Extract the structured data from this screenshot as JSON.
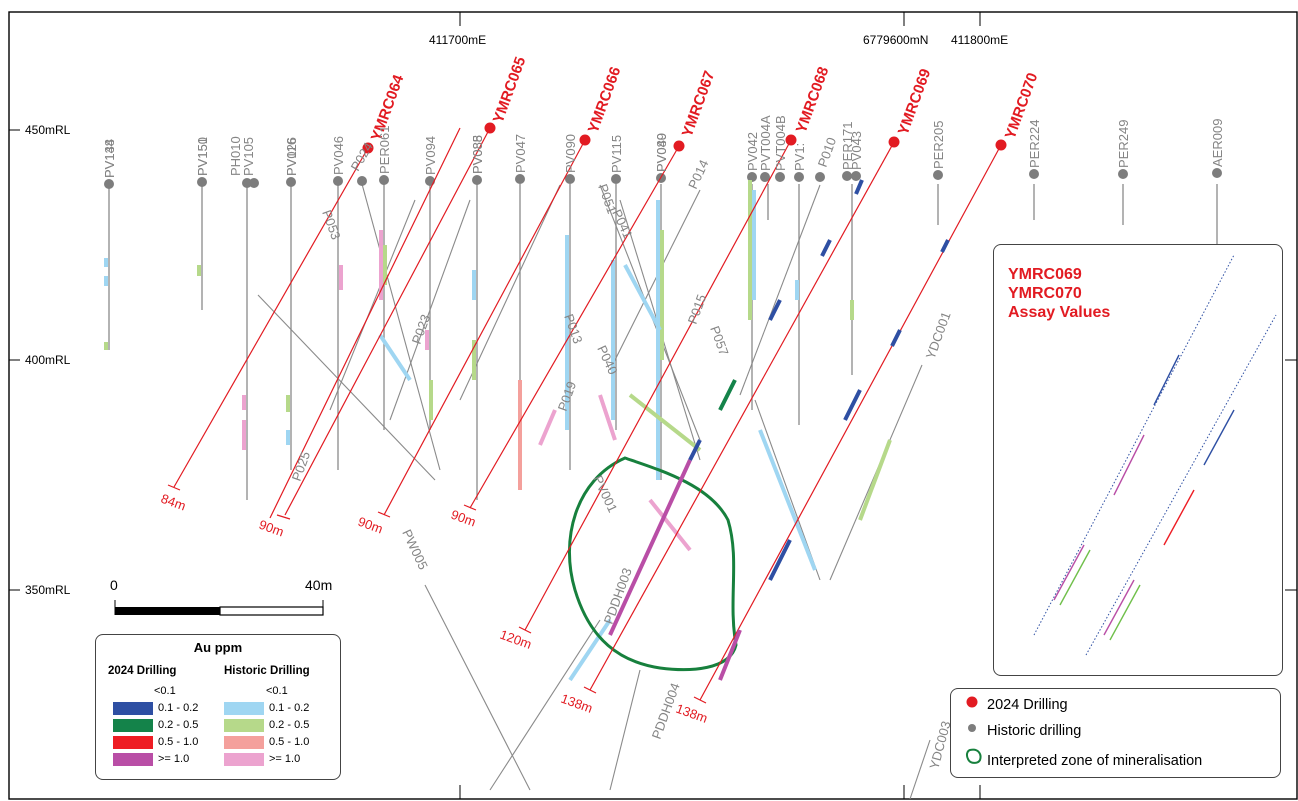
{
  "easting_labels": [
    "411700mE",
    "6779600mN",
    "411800mE"
  ],
  "rl_labels": [
    "450mRL",
    "400mRL",
    "350mRL"
  ],
  "scale_bar": {
    "start": "0",
    "end": "40m"
  },
  "drill_2024": [
    {
      "id": "YMRC064",
      "depth": "84m"
    },
    {
      "id": "YMRC065",
      "depth": "90m"
    },
    {
      "id": "YMRC066",
      "depth": "90m"
    },
    {
      "id": "YMRC067",
      "depth": "90m"
    },
    {
      "id": "YMRC068",
      "depth": "120m"
    },
    {
      "id": "YMRC069",
      "depth": "138m"
    },
    {
      "id": "YMRC070",
      "depth": "138m"
    }
  ],
  "historic_labels": [
    "PV144",
    "PV138",
    "PV150",
    "PV151",
    "PH010",
    "PV105",
    "PV116",
    "PV026",
    "PV046",
    "P024",
    "PER061",
    "PV094",
    "PV088",
    "PV085",
    "PV047",
    "PV090",
    "PV115",
    "PV089",
    "PV040",
    "P014",
    "PV042",
    "PVT004A",
    "PVT004B",
    "PV1:",
    "P010",
    "PER171",
    "PV043",
    "PER205",
    "PER224",
    "PER249",
    "AER009",
    "P053",
    "P023",
    "P025",
    "P051",
    "P041",
    "P015",
    "P057",
    "P013",
    "P040",
    "P019",
    "PV001",
    "PW005",
    "YDC001",
    "PDDH003",
    "PDDH004",
    "YDC003"
  ],
  "assay_panel": {
    "lines": [
      "YMRC069",
      "YMRC070",
      "Assay Values"
    ]
  },
  "grade_legend": {
    "title": "Au ppm",
    "col_2024": "2024 Drilling",
    "col_hist": "Historic Drilling",
    "none_label": "<0.1",
    "classes": [
      {
        "label": "0.1 - 0.2",
        "c2024": "#2e4fa3",
        "chist": "#9fd6f2"
      },
      {
        "label": "0.2 - 0.5",
        "c2024": "#14834a",
        "chist": "#b6d98a"
      },
      {
        "label": "0.5 - 1.0",
        "c2024": "#ee1d24",
        "chist": "#f4a09c"
      },
      {
        "label": ">= 1.0",
        "c2024": "#b94ea6",
        "chist": "#eca3cf"
      }
    ]
  },
  "symbol_key": [
    {
      "label": "2024 Drilling",
      "symbol": "red-dot"
    },
    {
      "label": "Historic drilling",
      "symbol": "grey-dot"
    },
    {
      "label": "Interpreted zone of mineralisation",
      "symbol": "green-outline"
    }
  ],
  "colors": {
    "drill_2024": "#e21b22",
    "historic": "#808080",
    "zone": "#17803d"
  }
}
